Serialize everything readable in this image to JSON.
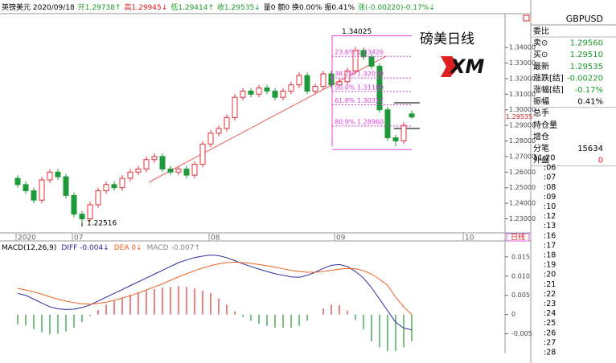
{
  "top_bar": [
    {
      "text": "英镑美元 2020/09/18",
      "color": "#000000"
    },
    {
      "text": "开1.29738↑",
      "color": "#1a9a2a"
    },
    {
      "text": "高1.29945↓",
      "color": "#e02020"
    },
    {
      "text": "低1.29414↑",
      "color": "#1a9a2a"
    },
    {
      "text": "收1.29535↓",
      "color": "#1a9a2a"
    },
    {
      "text": "量0 额0 换0.00% 振0.41%",
      "color": "#000000"
    },
    {
      "text": "涨(-0.00220)-0.17%↓",
      "color": "#1a9a2a"
    }
  ],
  "overlay_title": "磅美日线",
  "logo": "XM",
  "x_labels": [
    "2020",
    "07",
    "08",
    "09",
    "10"
  ],
  "period_tab": "日线",
  "chart_data": [
    {
      "type": "candlestick",
      "up_color": "#e0303a",
      "down_color": "#1f9a3a",
      "open": [
        1.256,
        1.252,
        1.248,
        1.242,
        1.255,
        1.26,
        1.257,
        1.245,
        1.233,
        1.23,
        1.239,
        1.248,
        1.252,
        1.25,
        1.256,
        1.26,
        1.262,
        1.268,
        1.27,
        1.262,
        1.26,
        1.262,
        1.258,
        1.265,
        1.278,
        1.285,
        1.288,
        1.295,
        1.308,
        1.312,
        1.31,
        1.314,
        1.312,
        1.308,
        1.312,
        1.316,
        1.322,
        1.312,
        1.315,
        1.323,
        1.316,
        1.318,
        1.325,
        1.338,
        1.334,
        1.328,
        1.3,
        1.282,
        1.28,
        1.29738
      ],
      "high": [
        1.258,
        1.254,
        1.25,
        1.257,
        1.262,
        1.262,
        1.259,
        1.247,
        1.235,
        1.241,
        1.25,
        1.254,
        1.254,
        1.258,
        1.262,
        1.264,
        1.27,
        1.272,
        1.272,
        1.264,
        1.264,
        1.264,
        1.267,
        1.28,
        1.287,
        1.29,
        1.297,
        1.31,
        1.314,
        1.314,
        1.316,
        1.316,
        1.314,
        1.314,
        1.318,
        1.324,
        1.324,
        1.317,
        1.325,
        1.325,
        1.32,
        1.327,
        1.34025,
        1.34,
        1.336,
        1.33,
        1.302,
        1.284,
        1.292,
        1.29945
      ],
      "low": [
        1.25,
        1.246,
        1.24,
        1.24,
        1.253,
        1.255,
        1.243,
        1.231,
        1.22516,
        1.228,
        1.237,
        1.246,
        1.248,
        1.248,
        1.254,
        1.258,
        1.26,
        1.266,
        1.26,
        1.258,
        1.258,
        1.256,
        1.256,
        1.263,
        1.276,
        1.283,
        1.286,
        1.293,
        1.306,
        1.308,
        1.308,
        1.31,
        1.306,
        1.306,
        1.31,
        1.314,
        1.31,
        1.31,
        1.313,
        1.314,
        1.314,
        1.316,
        1.323,
        1.332,
        1.326,
        1.298,
        1.28,
        1.2765,
        1.278,
        1.29414
      ],
      "close": [
        1.252,
        1.248,
        1.242,
        1.255,
        1.26,
        1.257,
        1.245,
        1.233,
        1.23,
        1.239,
        1.248,
        1.252,
        1.25,
        1.256,
        1.26,
        1.262,
        1.268,
        1.27,
        1.262,
        1.26,
        1.262,
        1.258,
        1.265,
        1.278,
        1.285,
        1.288,
        1.295,
        1.308,
        1.312,
        1.31,
        1.314,
        1.312,
        1.308,
        1.312,
        1.316,
        1.322,
        1.312,
        1.315,
        1.323,
        1.316,
        1.318,
        1.325,
        1.338,
        1.334,
        1.328,
        1.3,
        1.282,
        1.28,
        1.29,
        1.29535
      ],
      "ylim": [
        1.222,
        1.355
      ],
      "yticks": [
        {
          "value": 1.23,
          "label": "1.23000"
        },
        {
          "value": 1.24,
          "label": "1.24000"
        },
        {
          "value": 1.25,
          "label": "1.25000"
        },
        {
          "value": 1.26,
          "label": "1.26000"
        },
        {
          "value": 1.27,
          "label": "1.27000"
        },
        {
          "value": 1.28,
          "label": "1.28000"
        },
        {
          "value": 1.29,
          "label": "1.29000"
        },
        {
          "value": 1.3,
          "label": "1.30000"
        },
        {
          "value": 1.31,
          "label": "1.31000"
        },
        {
          "value": 1.32,
          "label": "1.32000"
        },
        {
          "value": 1.33,
          "label": "1.33000"
        },
        {
          "value": 1.34,
          "label": "1.34000"
        }
      ],
      "last_price": 1.29535,
      "high_marker": 1.34025,
      "low_marker": 1.22516,
      "fib_color": "#e040e0",
      "fib_levels": [
        {
          "pct": "23.6%",
          "price": 1.33426
        },
        {
          "pct": "38.2%",
          "price": 1.32039
        },
        {
          "pct": "50.0%",
          "price": {
            "value": 1.3118,
            "label": "1.31180"
          }
        },
        {
          "pct": "61.8%",
          "price": 1.30317
        },
        {
          "pct": "80.9%",
          "price": {
            "value": 1.2896,
            "label": "1.28960"
          }
        }
      ]
    },
    {
      "type": "macd",
      "title": "MACD(12,26,9)",
      "legend": [
        {
          "text": "DIFF -0.004↓",
          "color": "#2a2aa0"
        },
        {
          "text": "DEA 0↓",
          "color": "#f06020"
        },
        {
          "text": "MACD -0.007↑",
          "color": "#888888"
        }
      ],
      "series": [
        {
          "name": "DIFF",
          "color": "#2a2aa0",
          "values": [
            0.0055,
            0.005,
            0.004,
            0.003,
            0.002,
            0.0015,
            0.0013,
            0.0014,
            0.0018,
            0.0025,
            0.0035,
            0.0045,
            0.0055,
            0.0065,
            0.0075,
            0.0085,
            0.0095,
            0.0105,
            0.0115,
            0.0125,
            0.0135,
            0.0142,
            0.0148,
            0.0152,
            0.0155,
            0.0153,
            0.0148,
            0.014,
            0.0132,
            0.0125,
            0.0118,
            0.0112,
            0.0106,
            0.0102,
            0.0098,
            0.0097,
            0.0102,
            0.011,
            0.012,
            0.0128,
            0.013,
            0.0125,
            0.0112,
            0.0095,
            0.007,
            0.004,
            0.001,
            -0.002,
            -0.0035,
            -0.004
          ]
        },
        {
          "name": "DEA",
          "color": "#f06020",
          "values": [
            0.0068,
            0.0064,
            0.0059,
            0.0053,
            0.0046,
            0.004,
            0.0035,
            0.0031,
            0.0028,
            0.0027,
            0.0029,
            0.0032,
            0.0037,
            0.0043,
            0.0049,
            0.0056,
            0.0064,
            0.0072,
            0.008,
            0.0089,
            0.0098,
            0.0106,
            0.0114,
            0.0121,
            0.0127,
            0.0132,
            0.0135,
            0.0136,
            0.0135,
            0.0133,
            0.013,
            0.0127,
            0.0123,
            0.0119,
            0.0115,
            0.0112,
            0.011,
            0.011,
            0.0112,
            0.0115,
            0.0118,
            0.012,
            0.0119,
            0.0114,
            0.0105,
            0.0092,
            0.0076,
            0.0045,
            0.002,
            0.0
          ]
        }
      ],
      "histogram": {
        "name": "MACD",
        "up_color": "#e03030",
        "down_color": "#1f9a3a",
        "values": [
          -0.0026,
          -0.0028,
          -0.0038,
          -0.0046,
          -0.0052,
          -0.005,
          -0.0044,
          -0.0034,
          -0.002,
          -0.0004,
          0.0012,
          0.0026,
          0.0036,
          0.0044,
          0.0052,
          0.0058,
          0.0062,
          0.0066,
          0.007,
          0.0072,
          0.0074,
          0.0072,
          0.0068,
          0.0062,
          0.0056,
          0.0042,
          0.0026,
          0.0008,
          -0.0006,
          -0.0016,
          -0.0024,
          -0.003,
          -0.0034,
          -0.0034,
          -0.0034,
          -0.003,
          -0.0016,
          0.0,
          0.0016,
          0.0026,
          0.0024,
          0.001,
          -0.0014,
          -0.0038,
          -0.007,
          -0.0085,
          -0.0095,
          -0.0095,
          -0.0085,
          -0.007
        ]
      },
      "ylim": [
        -0.0101,
        0.0181
      ],
      "yticks": [
        -0.005,
        0,
        0.005,
        {
          "value": 0.01,
          "label": "0.010"
        },
        0.015
      ]
    }
  ],
  "quote_panel": {
    "symbol": "GBPUSD",
    "rows": [
      {
        "label": "委比",
        "value": null,
        "color": "#000000"
      },
      {
        "label": "卖⊙",
        "value": "1.29560",
        "color": "#1a9a2a"
      },
      {
        "label": "买⊙",
        "value": "1.29510",
        "color": "#1a9a2a"
      },
      {
        "label": "最新",
        "value": "1.29535",
        "color": "#1a9a2a"
      },
      {
        "label": "涨跌[结]",
        "value": "-0.00220",
        "color": "#1a9a2a"
      },
      {
        "label": "涨幅[结]",
        "value": "-0.17%",
        "color": "#1a9a2a"
      },
      {
        "label": "振幅",
        "value": "0.41%",
        "color": "#000000"
      },
      {
        "label": "总手",
        "value": null,
        "color": "#000000"
      },
      {
        "label": "持仓量",
        "value": null,
        "color": "#000000"
      },
      {
        "label": "增仓",
        "value": null,
        "color": "#000000"
      },
      {
        "label": "分笔",
        "value": "15634",
        "color": "#000000"
      },
      {
        "label": "外盘",
        "value": "0",
        "color": "#e02020"
      }
    ],
    "times": [
      "11:20",
      ":06",
      ":07",
      ":08",
      ":09",
      ":10",
      ":12",
      ":13",
      ":16",
      ":17",
      ":18",
      ":19",
      ":20",
      ":21",
      ":22",
      ":23",
      ":24",
      ":25",
      ":26",
      ":27",
      ":28"
    ]
  }
}
